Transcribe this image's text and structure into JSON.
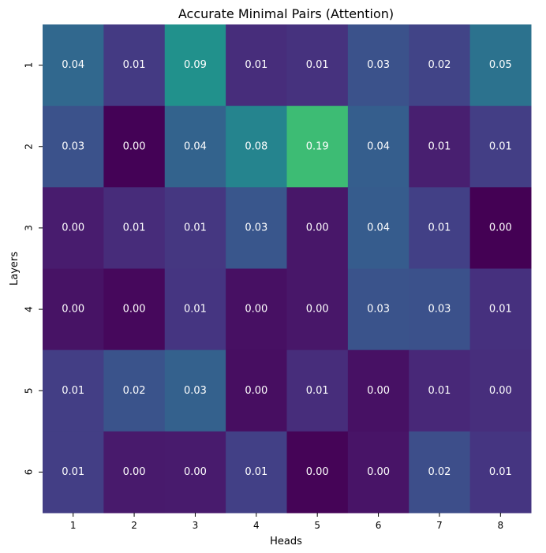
{
  "chart_data": {
    "type": "heatmap",
    "title": "Accurate Minimal Pairs (Attention)",
    "xlabel": "Heads",
    "ylabel": "Layers",
    "x_categories": [
      "1",
      "2",
      "3",
      "4",
      "5",
      "6",
      "7",
      "8"
    ],
    "y_categories": [
      "1",
      "2",
      "3",
      "4",
      "5",
      "6"
    ],
    "values": [
      [
        0.04,
        0.01,
        0.09,
        0.01,
        0.01,
        0.03,
        0.02,
        0.05
      ],
      [
        0.03,
        0.0,
        0.04,
        0.08,
        0.19,
        0.04,
        0.01,
        0.01
      ],
      [
        0.0,
        0.01,
        0.01,
        0.03,
        0.0,
        0.04,
        0.01,
        0.0
      ],
      [
        0.0,
        0.0,
        0.01,
        0.0,
        0.0,
        0.03,
        0.03,
        0.01
      ],
      [
        0.01,
        0.02,
        0.03,
        0.0,
        0.01,
        0.0,
        0.01,
        0.0
      ],
      [
        0.01,
        0.0,
        0.0,
        0.01,
        0.0,
        0.0,
        0.02,
        0.01
      ]
    ],
    "cell_labels": [
      [
        "0.04",
        "0.01",
        "0.09",
        "0.01",
        "0.01",
        "0.03",
        "0.02",
        "0.05"
      ],
      [
        "0.03",
        "0.00",
        "0.04",
        "0.08",
        "0.19",
        "0.04",
        "0.01",
        "0.01"
      ],
      [
        "0.00",
        "0.01",
        "0.01",
        "0.03",
        "0.00",
        "0.04",
        "0.01",
        "0.00"
      ],
      [
        "0.00",
        "0.00",
        "0.01",
        "0.00",
        "0.00",
        "0.03",
        "0.03",
        "0.01"
      ],
      [
        "0.01",
        "0.02",
        "0.03",
        "0.00",
        "0.01",
        "0.00",
        "0.01",
        "0.00"
      ],
      [
        "0.01",
        "0.00",
        "0.00",
        "0.01",
        "0.00",
        "0.00",
        "0.02",
        "0.01"
      ]
    ],
    "cell_colors": [
      [
        "#31688e",
        "#443a83",
        "#21918c",
        "#472d7b",
        "#46327e",
        "#3b528b",
        "#414487",
        "#2c728e"
      ],
      [
        "#3b528b",
        "#440256",
        "#33638d",
        "#25848e",
        "#3dbc74",
        "#355e8d",
        "#481f70",
        "#433e85"
      ],
      [
        "#481c6e",
        "#472c7a",
        "#453781",
        "#39568c",
        "#481769",
        "#365c8d",
        "#424086",
        "#440154"
      ],
      [
        "#471365",
        "#46085c",
        "#453581",
        "#471063",
        "#481769",
        "#3a538b",
        "#3b518b",
        "#46307e"
      ],
      [
        "#433e85",
        "#3a538b",
        "#34618d",
        "#470e61",
        "#472d7b",
        "#471164",
        "#482878",
        "#472e7c"
      ],
      [
        "#433e85",
        "#481a6c",
        "#481b6d",
        "#424086",
        "#450457",
        "#481467",
        "#3d4e8a",
        "#453581"
      ]
    ],
    "colormap": "viridis",
    "grid": false,
    "legend": "none"
  }
}
